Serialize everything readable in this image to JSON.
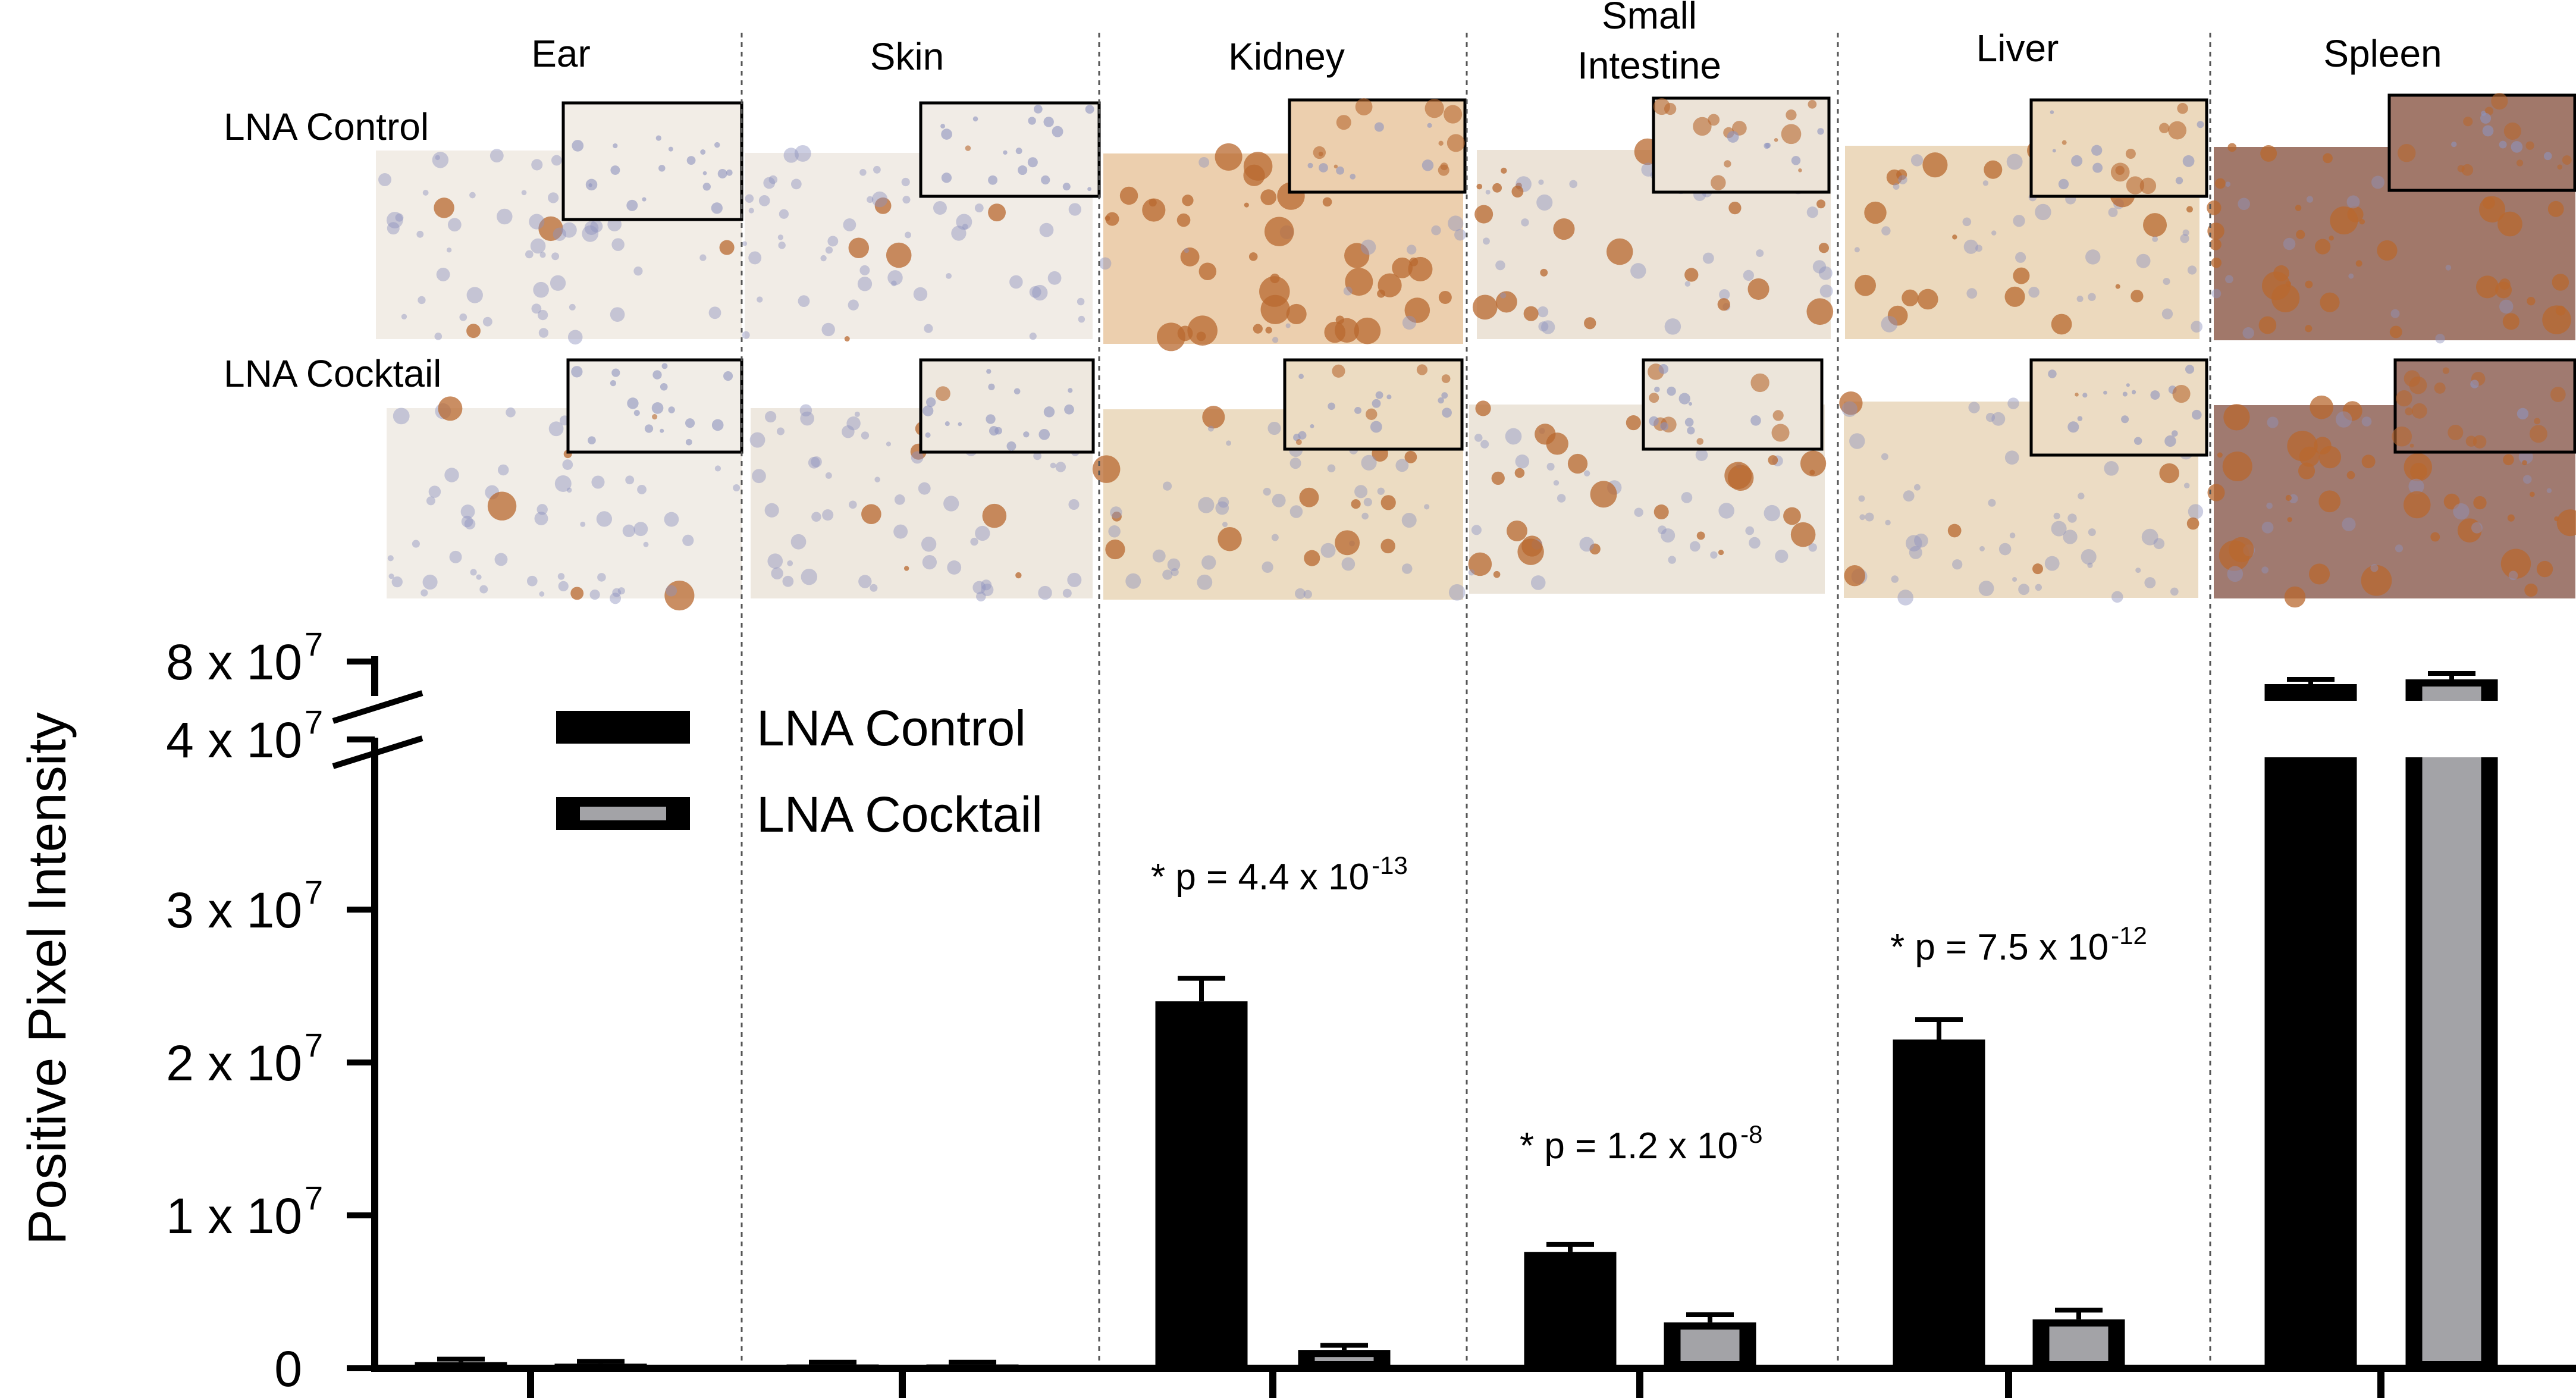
{
  "panels": {
    "tissues": [
      {
        "name": "Ear"
      },
      {
        "name": "Skin"
      },
      {
        "name": "Kidney"
      },
      {
        "name": "Small Intestine",
        "lines": [
          "Small",
          "Intestine"
        ]
      },
      {
        "name": "Liver"
      },
      {
        "name": "Spleen"
      }
    ],
    "row_labels": [
      "LNA Control",
      "LNA Cocktail"
    ]
  },
  "colors": {
    "control": "#000000",
    "cocktail": "#a3a3a7",
    "stain_brown": "#b8682f",
    "stain_blue": "#8d92be",
    "tissue_bg": "#ede4d6",
    "divider": "#555555"
  },
  "chart_data": {
    "type": "bar",
    "categories": [
      "Ear",
      "Skin",
      "Kidney",
      "Small Intestine",
      "Liver",
      "Spleen"
    ],
    "series": [
      {
        "name": "LNA Control",
        "values": [
          400000,
          250000,
          24000000,
          7600000,
          21500000,
          70000000
        ],
        "errors": [
          200000,
          150000,
          1500000,
          500000,
          1300000,
          2000000
        ]
      },
      {
        "name": "LNA Cocktail",
        "values": [
          300000,
          250000,
          1200000,
          3000000,
          3200000,
          72000000
        ],
        "errors": [
          150000,
          150000,
          300000,
          500000,
          600000,
          2500000
        ]
      }
    ],
    "ylabel": "Positive Pixel Intensity",
    "ylim": [
      0,
      80000000
    ],
    "axis_break": {
      "from": 40000000,
      "to": 80000000
    },
    "yticks": [
      {
        "value": 0,
        "label": "0",
        "exp": ""
      },
      {
        "value": 10000000,
        "label": "1 x 10",
        "exp": "7"
      },
      {
        "value": 20000000,
        "label": "2 x 10",
        "exp": "7"
      },
      {
        "value": 30000000,
        "label": "3 x 10",
        "exp": "7"
      },
      {
        "value": 40000000,
        "label": "4 x 10",
        "exp": "7"
      },
      {
        "value": 80000000,
        "label": "8 x 10",
        "exp": "7"
      }
    ],
    "annotations": [
      {
        "category": "Kidney",
        "text": "* p = 4.4 x 10",
        "exp": "-13"
      },
      {
        "category": "Small Intestine",
        "text": "* p = 1.2 x 10",
        "exp": "-8"
      },
      {
        "category": "Liver",
        "text": "* p = 7.5 x 10",
        "exp": "-12"
      }
    ],
    "legend": {
      "placement": "top-left",
      "entries": [
        "LNA Control",
        "LNA Cocktail"
      ]
    }
  }
}
